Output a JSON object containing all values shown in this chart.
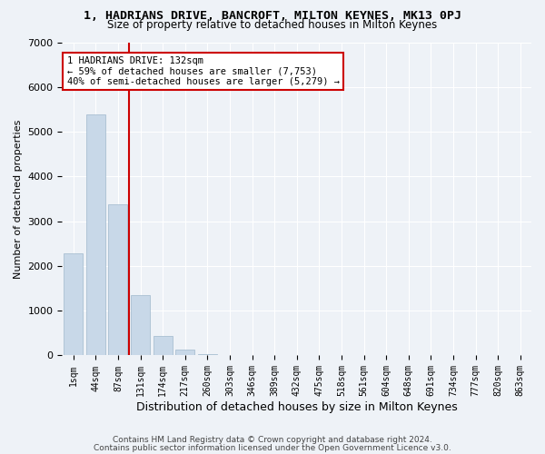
{
  "title_line1": "1, HADRIANS DRIVE, BANCROFT, MILTON KEYNES, MK13 0PJ",
  "title_line2": "Size of property relative to detached houses in Milton Keynes",
  "xlabel": "Distribution of detached houses by size in Milton Keynes",
  "ylabel": "Number of detached properties",
  "bar_color": "#c8d8e8",
  "bar_edge_color": "#a0b8cc",
  "marker_line_color": "#cc0000",
  "annotation_box_color": "#cc0000",
  "annotation_text": "1 HADRIANS DRIVE: 132sqm\n← 59% of detached houses are smaller (7,753)\n40% of semi-detached houses are larger (5,279) →",
  "marker_value": 132,
  "categories": [
    "1sqm",
    "44sqm",
    "87sqm",
    "131sqm",
    "174sqm",
    "217sqm",
    "260sqm",
    "303sqm",
    "346sqm",
    "389sqm",
    "432sqm",
    "475sqm",
    "518sqm",
    "561sqm",
    "604sqm",
    "648sqm",
    "691sqm",
    "734sqm",
    "777sqm",
    "820sqm",
    "863sqm"
  ],
  "values": [
    2280,
    5380,
    3380,
    1340,
    430,
    130,
    40,
    15,
    8,
    4,
    2,
    1,
    1,
    0,
    0,
    0,
    0,
    0,
    0,
    0,
    0
  ],
  "ylim": [
    0,
    7000
  ],
  "yticks": [
    0,
    1000,
    2000,
    3000,
    4000,
    5000,
    6000,
    7000
  ],
  "footer_line1": "Contains HM Land Registry data © Crown copyright and database right 2024.",
  "footer_line2": "Contains public sector information licensed under the Open Government Licence v3.0.",
  "background_color": "#eef2f7",
  "grid_color": "#ffffff"
}
